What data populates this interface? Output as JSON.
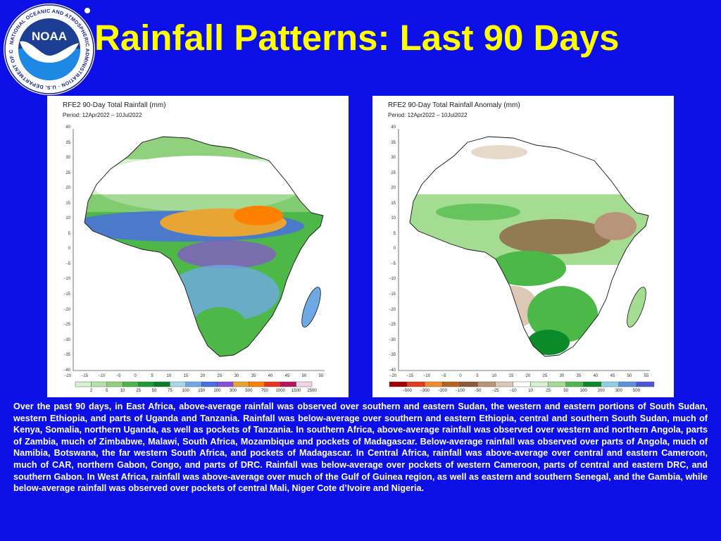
{
  "header": {
    "title": "Rainfall Patterns: Last 90 Days",
    "logo_text": "NOAA",
    "logo_ring_text": "NATIONAL OCEANIC AND ATMOSPHERIC ADMINISTRATION · U.S. DEPARTMENT OF COMMERCE"
  },
  "maps": [
    {
      "title": "RFE2 90-Day Total Rainfall (mm)",
      "period": "Period:  12Apr2022 – 10Jul2022",
      "lat_ticks": [
        "40",
        "35",
        "30",
        "25",
        "20",
        "15",
        "10",
        "5",
        "0",
        "−5",
        "−10",
        "−15",
        "−20",
        "−25",
        "−30",
        "−35",
        "−40"
      ],
      "lon_ticks": [
        "−20",
        "−15",
        "−10",
        "−5",
        "0",
        "5",
        "10",
        "15",
        "20",
        "25",
        "30",
        "35",
        "40",
        "45",
        "50",
        "55"
      ],
      "legend_labels": [
        "2",
        "5",
        "10",
        "25",
        "50",
        "75",
        "100",
        "150",
        "200",
        "300",
        "500",
        "750",
        "1000",
        "1500",
        "2500"
      ],
      "legend_colors": [
        "#d7f0d0",
        "#b5e3a8",
        "#8fd17c",
        "#4db848",
        "#1e9b36",
        "#0b7d2a",
        "#a8d8ef",
        "#6fa9e5",
        "#4a6fe0",
        "#8a4fd8",
        "#e8a534",
        "#ff7f00",
        "#e8361e",
        "#b5155f",
        "#f2d5e8"
      ]
    },
    {
      "title": "RFE2 90-Day Total Rainfall Anomaly (mm)",
      "period": "Period:  12Apr2022 – 10Jul2022",
      "lat_ticks": [
        "40",
        "35",
        "30",
        "25",
        "20",
        "15",
        "10",
        "5",
        "0",
        "−5",
        "−10",
        "−15",
        "−20",
        "−25",
        "−30",
        "−35",
        "−40"
      ],
      "lon_ticks": [
        "−20",
        "−15",
        "−10",
        "−5",
        "0",
        "5",
        "10",
        "15",
        "20",
        "25",
        "30",
        "35",
        "40",
        "45",
        "50",
        "55"
      ],
      "legend_labels": [
        "−500",
        "−300",
        "−200",
        "−100",
        "−50",
        "−25",
        "−10",
        "10",
        "25",
        "50",
        "100",
        "200",
        "300",
        "500"
      ],
      "legend_colors": [
        "#a30000",
        "#e23b1e",
        "#f28a30",
        "#b5651d",
        "#8c5a3c",
        "#b89478",
        "#dcc8b4",
        "#ffffff",
        "#d7f0d0",
        "#a4dd92",
        "#4cb848",
        "#0b8a2a",
        "#8fd0e8",
        "#5f8fe0",
        "#4c57d8"
      ]
    }
  ],
  "description": "Over the past 90 days, in East Africa, above-average rainfall was observed over southern and eastern Sudan, the western and eastern portions of South Sudan, western Ethiopia, and parts of Uganda and Tanzania. Rainfall was below-average over southern and eastern Ethiopia, central and southern South Sudan, much of Kenya, Somalia, northern Uganda, as well as pockets of Tanzania. In southern Africa, above-average rainfall was observed over western and northern Angola, parts of Zambia, much of Zimbabwe, Malawi, South Africa, Mozambique and pockets of Madagascar. Below-average rainfall was observed over parts of Angola, much of Namibia, Botswana, the far western South Africa, and pockets of Madagascar. In Central Africa, rainfall was above-average over central and eastern Cameroon, much of CAR, northern Gabon, Congo, and parts of DRC. Rainfall was below-average over pockets of western Cameroon, parts of central and eastern DRC, and southern Gabon. In West Africa, rainfall was above-average over much of the Gulf of Guinea region, as well as eastern and southern Senegal, and the Gambia, while below-average rainfall was observed over pockets of central Mali, Niger Cote d’Ivoire and Nigeria."
}
